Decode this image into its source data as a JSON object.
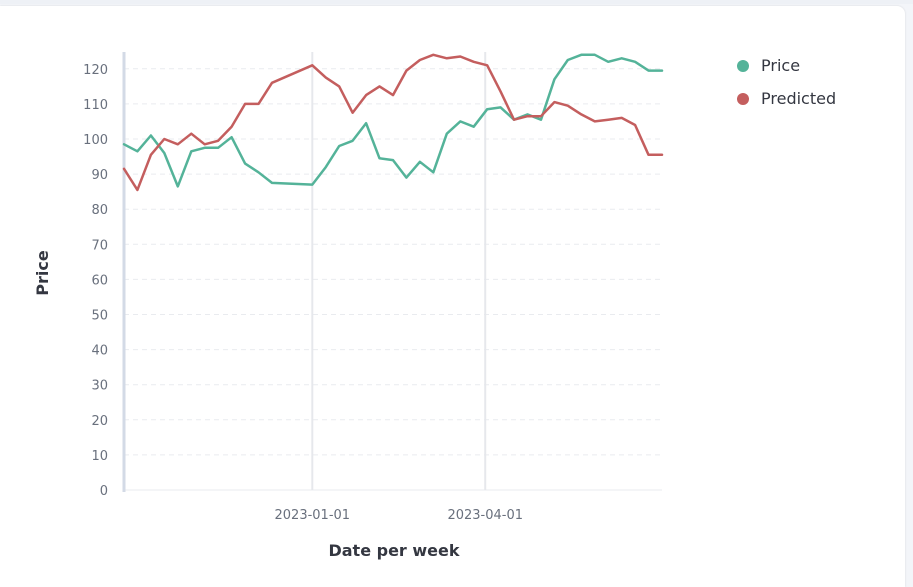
{
  "chart_data": {
    "type": "line",
    "xlabel": "Date per week",
    "ylabel": "Price",
    "ylim": [
      0,
      125
    ],
    "yticks": [
      0,
      10,
      20,
      30,
      40,
      50,
      60,
      70,
      80,
      90,
      100,
      110,
      120
    ],
    "x_ticks": [
      "2023-01-01",
      "2023-04-01"
    ],
    "grid": "horizontal dashed, vertical lines at date ticks",
    "legend": "top-right",
    "x": [
      "2022-09-25",
      "2022-10-02",
      "2022-10-09",
      "2022-10-16",
      "2022-10-23",
      "2022-10-30",
      "2022-11-06",
      "2022-11-13",
      "2022-11-20",
      "2022-11-27",
      "2022-12-04",
      "2022-12-11",
      "2023-01-01",
      "2023-01-08",
      "2023-01-15",
      "2023-01-22",
      "2023-01-29",
      "2023-02-05",
      "2023-02-12",
      "2023-02-19",
      "2023-02-26",
      "2023-03-05",
      "2023-03-12",
      "2023-03-19",
      "2023-03-26",
      "2023-04-02",
      "2023-04-09",
      "2023-04-16",
      "2023-04-23",
      "2023-04-30",
      "2023-05-07",
      "2023-05-14",
      "2023-05-21",
      "2023-05-28",
      "2023-06-04",
      "2023-06-11",
      "2023-06-18",
      "2023-06-25",
      "2023-07-02"
    ],
    "series": [
      {
        "name": "Price",
        "color": "#54b399",
        "values": [
          98.5,
          96.5,
          101,
          96,
          86.5,
          96.5,
          97.5,
          97.5,
          100.5,
          93,
          90.5,
          87.5,
          87,
          92,
          98,
          99.5,
          104.5,
          94.5,
          94,
          89,
          93.5,
          90.5,
          101.5,
          105,
          103.5,
          108.5,
          109,
          105.5,
          107,
          105.5,
          117,
          122.5,
          124,
          124,
          122,
          123,
          122,
          119.5,
          119.5
        ]
      },
      {
        "name": "Predicted",
        "color": "#c45e5e",
        "values": [
          91.5,
          85.5,
          95.5,
          100,
          98.5,
          101.5,
          98.5,
          99.5,
          103.5,
          110,
          110,
          116,
          121,
          117.5,
          115,
          107.5,
          112.5,
          115,
          112.5,
          119.5,
          122.5,
          124,
          123,
          123.5,
          122,
          121,
          113.5,
          105.5,
          106.5,
          106.5,
          110.5,
          109.5,
          107,
          105,
          105.5,
          106,
          104,
          95.5,
          95.5
        ]
      }
    ]
  }
}
